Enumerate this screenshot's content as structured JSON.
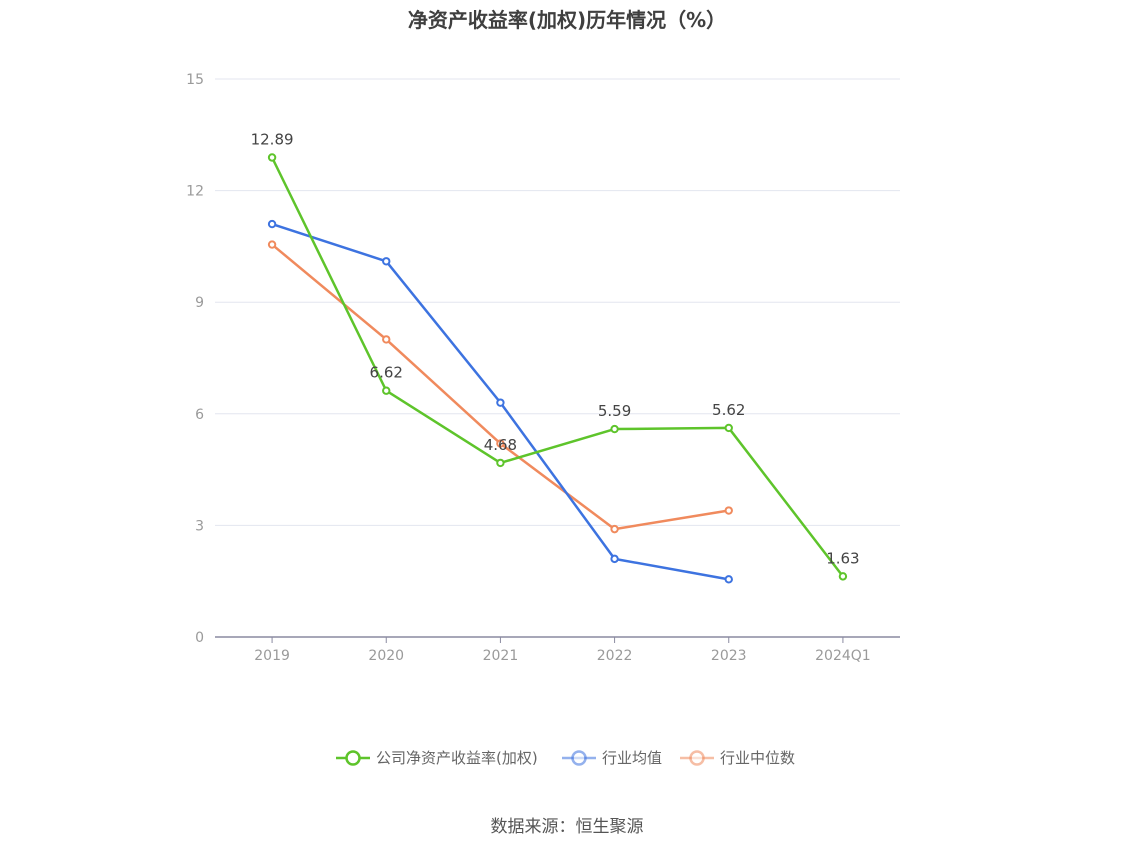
{
  "title": "净资产收益率(加权)历年情况（%）",
  "source": "数据来源：恒生聚源",
  "chart_data": {
    "type": "line",
    "title": "净资产收益率(加权)历年情况（%）",
    "categories": [
      "2019",
      "2020",
      "2021",
      "2022",
      "2023",
      "2024Q1"
    ],
    "ylim": [
      0,
      15
    ],
    "yticks": [
      0,
      3,
      6,
      9,
      12,
      15
    ],
    "grid": true,
    "legend_position": "bottom",
    "series": [
      {
        "name": "公司净资产收益率(加权)",
        "color": "#5ec42b",
        "values": [
          12.89,
          6.62,
          4.68,
          5.59,
          5.62,
          1.63
        ],
        "labels": [
          "12.89",
          "6.62",
          "4.68",
          "5.59",
          "5.62",
          "1.63"
        ]
      },
      {
        "name": "行业均值",
        "color": "#3d73e0",
        "values": [
          11.1,
          10.1,
          6.3,
          2.1,
          1.55,
          null
        ]
      },
      {
        "name": "行业中位数",
        "color": "#f08a5d",
        "values": [
          10.55,
          8.0,
          5.2,
          2.9,
          3.4,
          null
        ]
      }
    ]
  }
}
